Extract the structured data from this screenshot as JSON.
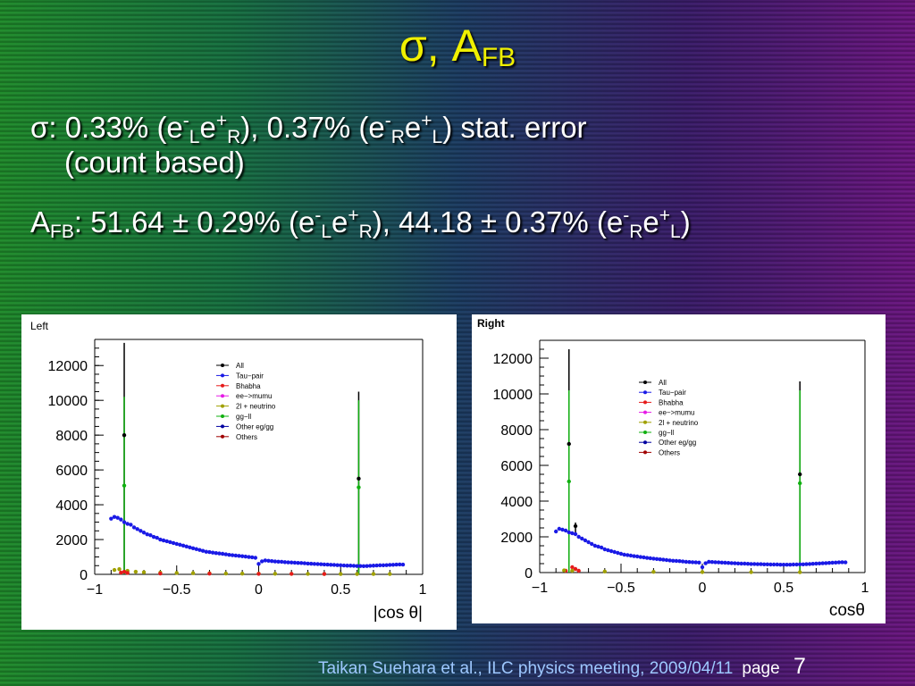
{
  "slide": {
    "title_main": "σ, A",
    "title_sub": "FB",
    "line1": {
      "p1": "σ: 0.33% (e",
      "s1": "-",
      "b1": "L",
      "p2": "e",
      "s2": "+",
      "b2": "R",
      "p3": "), 0.37% (e",
      "s3": "-",
      "b3": "R",
      "p4": "e",
      "s4": "+",
      "b4": "L",
      "p5": ") stat. error"
    },
    "line2": "(count based)",
    "line3": {
      "p1": "A",
      "b1": "FB",
      "p2": ": 51.64 ± 0.29% (e",
      "s2": "-",
      "b2": "L",
      "p3": "e",
      "s3": "+",
      "b3": "R",
      "p4": "), 44.18 ± 0.37% (e",
      "s4": "-",
      "b4": "R",
      "p5": "e",
      "s5": "+",
      "b5": "L",
      "p6": ")"
    },
    "footer": "Taikan Suehara et al., ILC physics meeting, 2009/04/11",
    "page_label": "page",
    "page_number": "7"
  },
  "chart_data": [
    {
      "type": "scatter",
      "panel_label": "Left",
      "xlabel": "|cos θ|",
      "xlim": [
        -1,
        1
      ],
      "ylim": [
        0,
        13500
      ],
      "xticks": [
        -1,
        -0.5,
        0,
        0.5,
        1
      ],
      "xtick_labels": [
        "−1",
        "−0.5",
        "0",
        "0.5",
        "1"
      ],
      "yticks": [
        0,
        2000,
        4000,
        6000,
        8000,
        10000,
        12000
      ],
      "ytick_labels": [
        "0",
        "2000",
        "4000",
        "6000",
        "8000",
        "10000",
        "12000"
      ],
      "legend": [
        {
          "label": "All",
          "color": "#000000"
        },
        {
          "label": "Tau−pair",
          "color": "#1a1ae6"
        },
        {
          "label": "Bhabha",
          "color": "#e61a1a"
        },
        {
          "label": "ee−>mumu",
          "color": "#e61ae6"
        },
        {
          "label": "2l + neutrino",
          "color": "#a0a000"
        },
        {
          "label": "gg−ll",
          "color": "#10b010"
        },
        {
          "label": "Other eg/gg",
          "color": "#0000a0"
        },
        {
          "label": "Others",
          "color": "#a00000"
        }
      ],
      "series": [
        {
          "name": "Tau−pair",
          "color": "#1a1ae6",
          "x": [
            -0.9,
            -0.88,
            -0.86,
            -0.84,
            -0.82,
            -0.8,
            -0.78,
            -0.76,
            -0.74,
            -0.72,
            -0.7,
            -0.68,
            -0.66,
            -0.64,
            -0.62,
            -0.6,
            -0.58,
            -0.56,
            -0.54,
            -0.52,
            -0.5,
            -0.48,
            -0.46,
            -0.44,
            -0.42,
            -0.4,
            -0.38,
            -0.36,
            -0.34,
            -0.32,
            -0.3,
            -0.28,
            -0.26,
            -0.24,
            -0.22,
            -0.2,
            -0.18,
            -0.16,
            -0.14,
            -0.12,
            -0.1,
            -0.08,
            -0.06,
            -0.04,
            -0.02,
            0.0,
            0.02,
            0.04,
            0.06,
            0.08,
            0.1,
            0.12,
            0.14,
            0.16,
            0.18,
            0.2,
            0.22,
            0.24,
            0.26,
            0.28,
            0.3,
            0.32,
            0.34,
            0.36,
            0.38,
            0.4,
            0.42,
            0.44,
            0.46,
            0.48,
            0.5,
            0.52,
            0.54,
            0.56,
            0.58,
            0.6,
            0.62,
            0.64,
            0.66,
            0.68,
            0.7,
            0.72,
            0.74,
            0.76,
            0.78,
            0.8,
            0.82,
            0.84,
            0.86,
            0.88
          ],
          "values": [
            3200,
            3300,
            3250,
            3150,
            3000,
            2900,
            2850,
            2700,
            2600,
            2500,
            2400,
            2300,
            2250,
            2150,
            2100,
            2000,
            1950,
            1900,
            1850,
            1800,
            1750,
            1700,
            1650,
            1600,
            1550,
            1500,
            1450,
            1400,
            1350,
            1300,
            1280,
            1250,
            1220,
            1200,
            1180,
            1150,
            1120,
            1100,
            1080,
            1060,
            1040,
            1020,
            1000,
            980,
            950,
            600,
            750,
            800,
            780,
            760,
            740,
            730,
            720,
            700,
            690,
            680,
            670,
            660,
            650,
            640,
            620,
            610,
            600,
            590,
            580,
            570,
            560,
            550,
            540,
            530,
            520,
            510,
            500,
            500,
            490,
            480,
            480,
            470,
            480,
            490,
            500,
            510,
            520,
            520,
            530,
            540,
            550,
            560,
            570,
            560
          ]
        },
        {
          "name": "All",
          "color": "#000000",
          "x": [
            -0.82,
            0.61
          ],
          "values": [
            8000,
            5500
          ],
          "errors_high": [
            13300,
            10500
          ],
          "errors_low": [
            0,
            0
          ]
        },
        {
          "name": "gg−ll",
          "color": "#10b010",
          "x": [
            -0.82,
            0.61
          ],
          "values": [
            5100,
            5000
          ],
          "errors_high": [
            10200,
            10000
          ],
          "errors_low": [
            0,
            0
          ]
        },
        {
          "name": "2l + neutrino",
          "color": "#a0a000",
          "x": [
            -0.88,
            -0.85,
            -0.8,
            -0.75,
            -0.7,
            -0.6,
            -0.5,
            -0.4,
            -0.3,
            -0.2,
            -0.1,
            0.0,
            0.1,
            0.2,
            0.3,
            0.4,
            0.5,
            0.6,
            0.7,
            0.8
          ],
          "values": [
            250,
            300,
            200,
            150,
            120,
            100,
            80,
            70,
            60,
            50,
            40,
            40,
            35,
            30,
            30,
            25,
            25,
            20,
            20,
            20
          ]
        },
        {
          "name": "Bhabha",
          "color": "#e61a1a",
          "x": [
            -0.84,
            -0.82,
            -0.8,
            -0.6,
            -0.3,
            0.0,
            0.2,
            0.4
          ],
          "values": [
            100,
            150,
            80,
            50,
            40,
            30,
            30,
            20
          ]
        }
      ]
    },
    {
      "type": "scatter",
      "panel_label": "Right",
      "xlabel": "cosθ",
      "xlim": [
        -1,
        1
      ],
      "ylim": [
        0,
        13000
      ],
      "xticks": [
        -1,
        -0.5,
        0,
        0.5,
        1
      ],
      "xtick_labels": [
        "−1",
        "−0.5",
        "0",
        "0.5",
        "1"
      ],
      "yticks": [
        0,
        2000,
        4000,
        6000,
        8000,
        10000,
        12000
      ],
      "ytick_labels": [
        "0",
        "2000",
        "4000",
        "6000",
        "8000",
        "10000",
        "12000"
      ],
      "legend": [
        {
          "label": "All",
          "color": "#000000"
        },
        {
          "label": "Tau−pair",
          "color": "#1a1ae6"
        },
        {
          "label": "Bhabha",
          "color": "#e61a1a"
        },
        {
          "label": "ee−>mumu",
          "color": "#e61ae6"
        },
        {
          "label": "2l + neutrino",
          "color": "#a0a000"
        },
        {
          "label": "gg−ll",
          "color": "#10b010"
        },
        {
          "label": "Other eg/gg",
          "color": "#0000a0"
        },
        {
          "label": "Others",
          "color": "#a00000"
        }
      ],
      "series": [
        {
          "name": "Tau−pair",
          "color": "#1a1ae6",
          "x": [
            -0.9,
            -0.88,
            -0.86,
            -0.84,
            -0.82,
            -0.8,
            -0.78,
            -0.76,
            -0.74,
            -0.72,
            -0.7,
            -0.68,
            -0.66,
            -0.64,
            -0.62,
            -0.6,
            -0.58,
            -0.56,
            -0.54,
            -0.52,
            -0.5,
            -0.48,
            -0.46,
            -0.44,
            -0.42,
            -0.4,
            -0.38,
            -0.36,
            -0.34,
            -0.32,
            -0.3,
            -0.28,
            -0.26,
            -0.24,
            -0.22,
            -0.2,
            -0.18,
            -0.16,
            -0.14,
            -0.12,
            -0.1,
            -0.08,
            -0.06,
            -0.04,
            -0.02,
            0.0,
            0.02,
            0.04,
            0.06,
            0.08,
            0.1,
            0.12,
            0.14,
            0.16,
            0.18,
            0.2,
            0.22,
            0.24,
            0.26,
            0.28,
            0.3,
            0.32,
            0.34,
            0.36,
            0.38,
            0.4,
            0.42,
            0.44,
            0.46,
            0.48,
            0.5,
            0.52,
            0.54,
            0.56,
            0.58,
            0.6,
            0.62,
            0.64,
            0.66,
            0.68,
            0.7,
            0.72,
            0.74,
            0.76,
            0.78,
            0.8,
            0.82,
            0.84,
            0.86,
            0.88
          ],
          "values": [
            2300,
            2450,
            2400,
            2350,
            2250,
            2200,
            2150,
            2000,
            1900,
            1800,
            1700,
            1600,
            1500,
            1450,
            1400,
            1300,
            1250,
            1200,
            1150,
            1100,
            1050,
            1000,
            980,
            950,
            920,
            900,
            870,
            850,
            820,
            800,
            780,
            760,
            740,
            720,
            700,
            680,
            660,
            650,
            640,
            620,
            600,
            590,
            580,
            570,
            560,
            300,
            520,
            600,
            590,
            580,
            570,
            560,
            550,
            540,
            530,
            520,
            510,
            500,
            500,
            490,
            480,
            480,
            470,
            470,
            460,
            460,
            450,
            450,
            450,
            440,
            440,
            440,
            440,
            450,
            450,
            460,
            460,
            470,
            480,
            490,
            500,
            510,
            520,
            530,
            540,
            550,
            560,
            570,
            580,
            570
          ]
        },
        {
          "name": "All",
          "color": "#000000",
          "x": [
            -0.82,
            -0.78,
            0.6
          ],
          "values": [
            7200,
            2600,
            5500
          ],
          "errors_high": [
            12500,
            2800,
            10700
          ],
          "errors_low": [
            0,
            2200,
            0
          ]
        },
        {
          "name": "gg−ll",
          "color": "#10b010",
          "x": [
            -0.82,
            0.6
          ],
          "values": [
            5100,
            5000
          ],
          "errors_high": [
            10200,
            10200
          ],
          "errors_low": [
            0,
            0
          ]
        },
        {
          "name": "Bhabha",
          "color": "#e61a1a",
          "x": [
            -0.84,
            -0.8,
            -0.78,
            -0.76
          ],
          "values": [
            100,
            300,
            200,
            100
          ]
        },
        {
          "name": "2l + neutrino",
          "color": "#a0a000",
          "x": [
            -0.85,
            -0.8,
            -0.6,
            -0.3,
            0.0,
            0.3,
            0.6
          ],
          "values": [
            120,
            100,
            60,
            40,
            30,
            25,
            20
          ]
        }
      ]
    }
  ]
}
